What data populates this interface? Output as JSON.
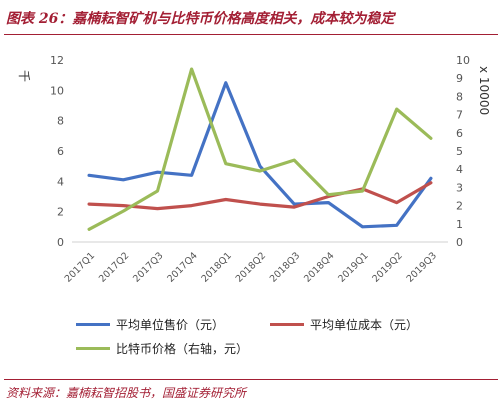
{
  "header": {
    "title": "图表 26：嘉楠耘智矿机与比特币价格高度相关，成本较为稳定"
  },
  "footer": {
    "source": "资料来源：嘉楠耘智招股书，国盛证券研究所"
  },
  "chart_data": {
    "type": "line",
    "title": "",
    "categories": [
      "2017Q1",
      "2017Q2",
      "2017Q3",
      "2017Q4",
      "2018Q1",
      "2018Q2",
      "2018Q3",
      "2018Q4",
      "2019Q1",
      "2019Q2",
      "2019Q3"
    ],
    "y_left": {
      "unit": "千",
      "ylim": [
        0,
        12
      ],
      "ticks": [
        0,
        2,
        4,
        6,
        8,
        10,
        12
      ]
    },
    "y_right": {
      "unit": "x 10000",
      "ylim": [
        0,
        10
      ],
      "ticks": [
        0,
        1,
        2,
        3,
        4,
        5,
        6,
        7,
        8,
        9,
        10
      ]
    },
    "grid": false,
    "legend_position": "bottom",
    "series": [
      {
        "name": "平均单位售价（元）",
        "axis": "left",
        "color": "#4472c4",
        "values": [
          4.4,
          4.1,
          4.6,
          4.4,
          10.5,
          5.0,
          2.5,
          2.6,
          1.0,
          1.1,
          4.2
        ]
      },
      {
        "name": "平均单位成本（元）",
        "axis": "left",
        "color": "#c0504d",
        "values": [
          2.5,
          2.4,
          2.2,
          2.4,
          2.8,
          2.5,
          2.3,
          3.0,
          3.5,
          2.6,
          3.9
        ]
      },
      {
        "name": "比特币价格（右轴，元）",
        "axis": "right",
        "color": "#9bbb59",
        "values": [
          0.7,
          1.7,
          2.8,
          9.5,
          4.3,
          3.9,
          4.5,
          2.6,
          2.8,
          7.3,
          5.7
        ]
      }
    ]
  }
}
